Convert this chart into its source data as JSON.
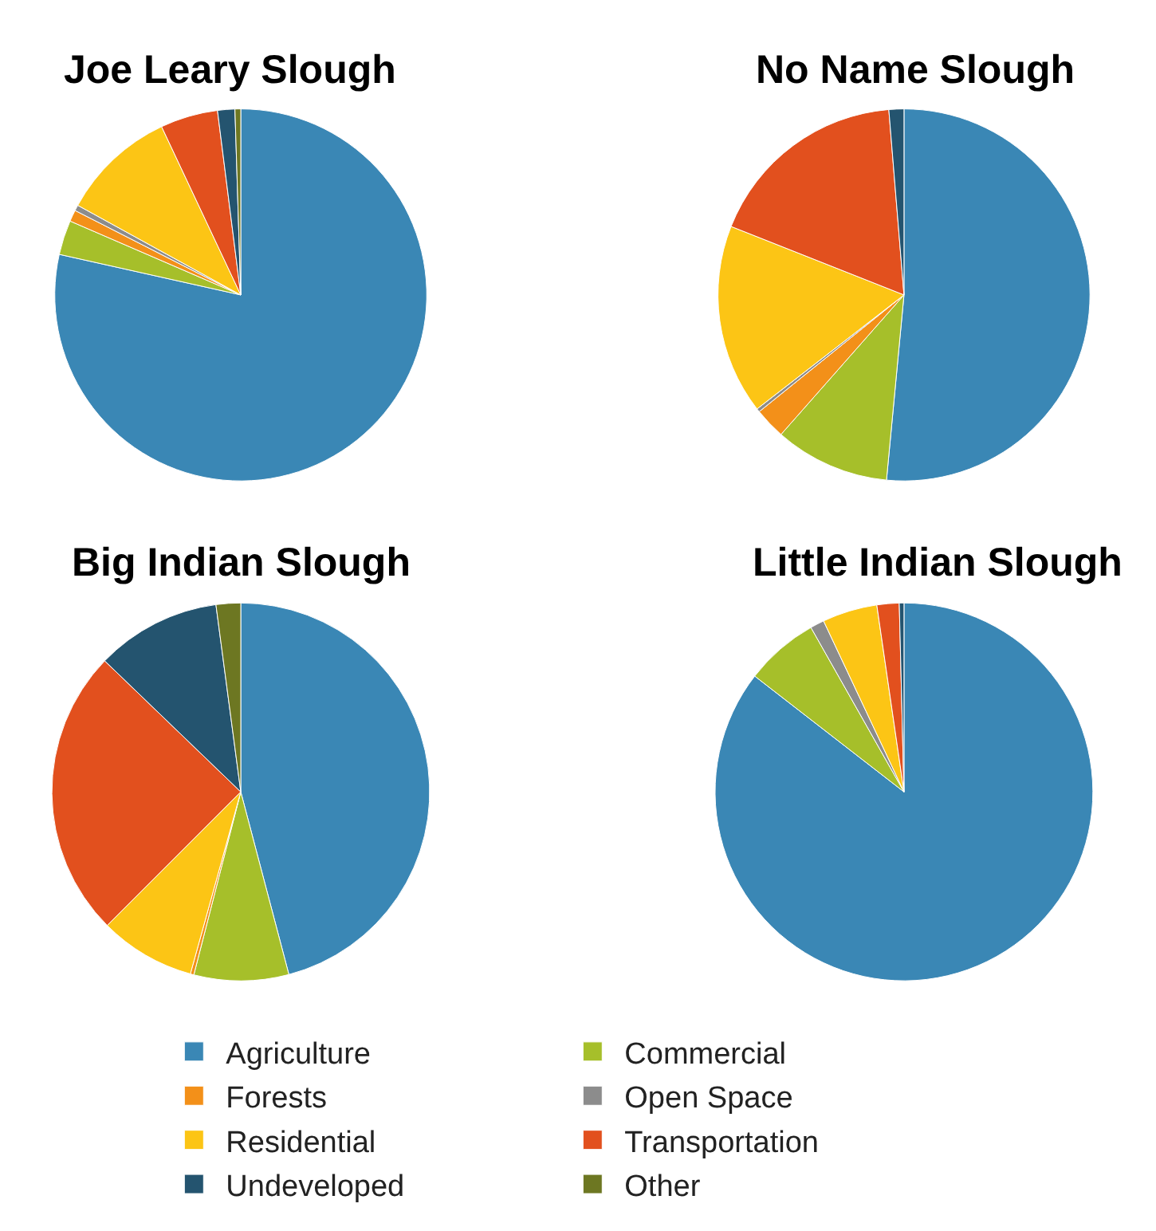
{
  "chart_data": [
    {
      "type": "pie",
      "title": "Joe Leary Slough",
      "legend": "bottom",
      "categories": [
        "Agriculture",
        "Commercial",
        "Forests",
        "Open Space",
        "Residential",
        "Transportation",
        "Undeveloped",
        "Other"
      ],
      "values": [
        78.5,
        3,
        1,
        0.5,
        10,
        5,
        1.5,
        0.5
      ],
      "colors": [
        "#3a87b5",
        "#a6bf2a",
        "#f39019",
        "#8c8c8c",
        "#fcc515",
        "#e2501e",
        "#24546f",
        "#6d7722"
      ]
    },
    {
      "type": "pie",
      "title": "No Name Slough",
      "categories": [
        null,
        null,
        null,
        null,
        null,
        null,
        null
      ],
      "values": [
        51.5,
        10,
        2.7,
        0.3,
        16.5,
        17.7,
        1.3
      ],
      "colors": [
        "#3a87b5",
        "#a6bf2a",
        "#f39019",
        "#8c8c8c",
        "#fcc515",
        "#e2501e",
        "#24546f"
      ]
    },
    {
      "type": "pie",
      "title": "Big Indian Slough",
      "categories": [
        null,
        null,
        null,
        null,
        null,
        null,
        null
      ],
      "values": [
        45.9,
        8.1,
        0.3,
        8.2,
        24.7,
        10.7,
        2.1
      ],
      "colors": [
        "#3a87b5",
        "#a6bf2a",
        "#f39019",
        "#fcc515",
        "#e2501e",
        "#24546f",
        "#6d7722"
      ]
    },
    {
      "type": "pie",
      "title": "Little Indian Slough",
      "categories": [
        null,
        null,
        null,
        null,
        null,
        null
      ],
      "values": [
        85.5,
        6.3,
        1.2,
        4.7,
        1.9,
        0.4
      ],
      "colors": [
        "#3a87b5",
        "#a6bf2a",
        "#8c8c8c",
        "#fcc515",
        "#e2501e",
        "#24546f"
      ]
    }
  ]
}
